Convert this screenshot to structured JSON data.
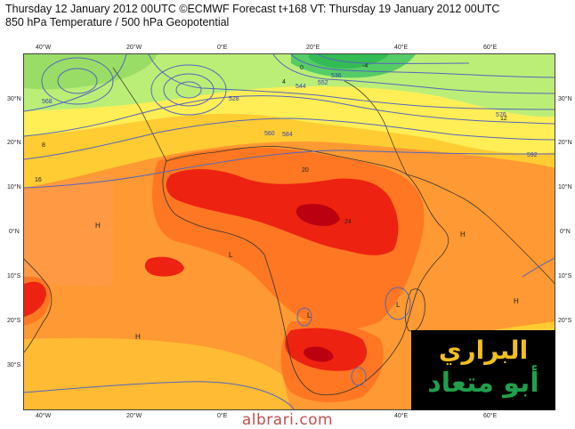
{
  "title_line1": "Thursday 12 January 2012 00UTC ©ECMWF Forecast t+168 VT: Thursday 19 January 2012 00UTC",
  "title_line2": "850 hPa Temperature / 500 hPa Geopotential",
  "lon_labels": [
    "40°W",
    "20°W",
    "0°E",
    "20°E",
    "40°E",
    "60°E"
  ],
  "lat_labels": [
    "30°N",
    "20°N",
    "10°N",
    "0°N",
    "10°S",
    "20°S",
    "30°S"
  ],
  "contour_labels": [
    "528",
    "536",
    "544",
    "552",
    "560",
    "568",
    "576",
    "584",
    "592"
  ],
  "temperature_labels": [
    "-4",
    "0",
    "4",
    "8",
    "12",
    "16",
    "20",
    "24"
  ],
  "pressure_centers": [
    "H",
    "L"
  ],
  "logo_line1": "البراري",
  "logo_line2": "أبو متعاد",
  "website": "albrari.com",
  "colors": {
    "green": "#66cc66",
    "light_green": "#bbee77",
    "yellow": "#ffee55",
    "light_orange": "#ffcc33",
    "orange": "#ff9933",
    "dark_orange": "#ff6622",
    "red": "#ee2211",
    "dark_red": "#bb0011",
    "contour": "#5566bb",
    "coast": "#333333"
  }
}
